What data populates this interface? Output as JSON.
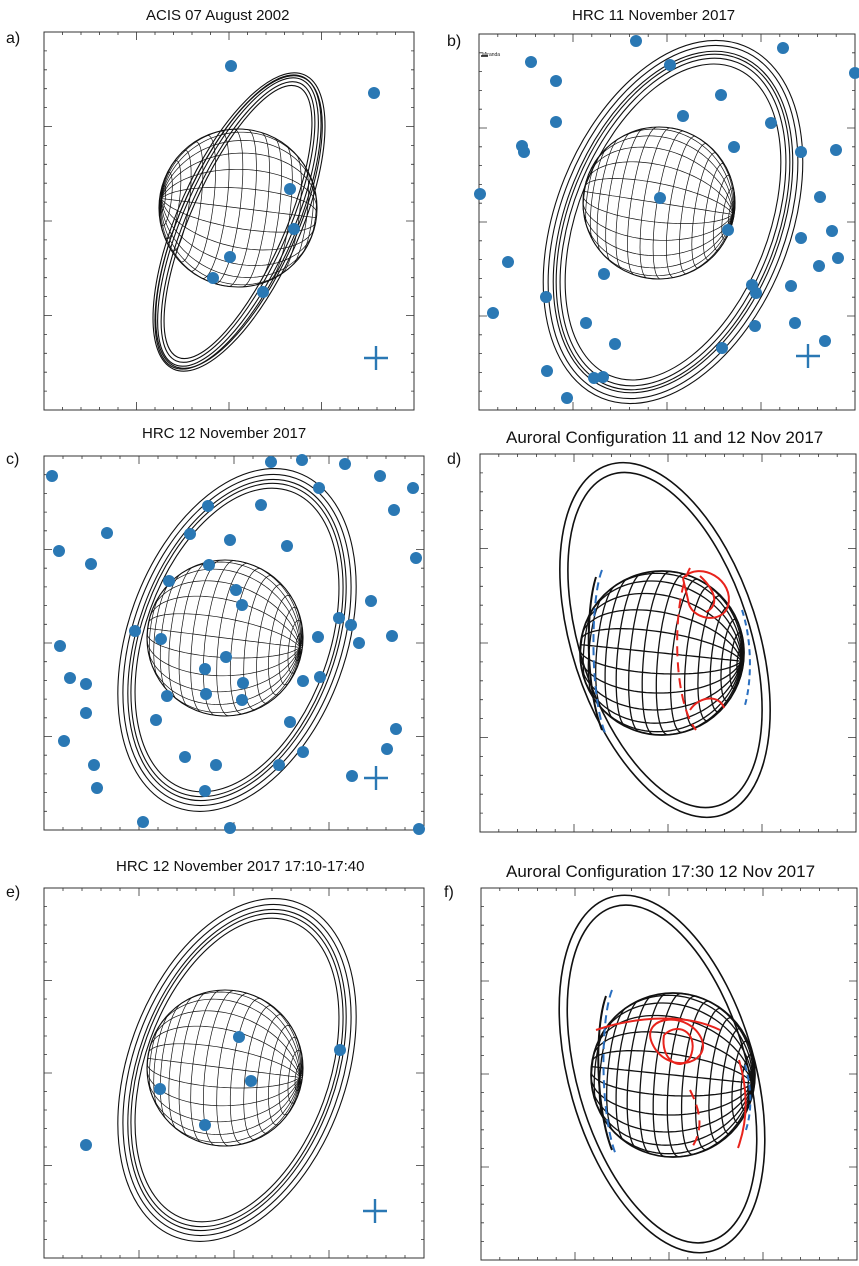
{
  "panels": [
    {
      "id": "a",
      "letter": "a)",
      "title": "ACIS 07 August 2002"
    },
    {
      "id": "b",
      "letter": "b)",
      "title": "HRC 11 November 2017",
      "moon_label": "Miranda"
    },
    {
      "id": "c",
      "letter": "c)",
      "title": "HRC 12 November 2017"
    },
    {
      "id": "d",
      "letter": "d)",
      "title": "Auroral Configuration 11 and 12 Nov 2017"
    },
    {
      "id": "e",
      "letter": "e)",
      "title": "HRC 12 November 2017 17:10-17:40"
    },
    {
      "id": "f",
      "letter": "f)",
      "title": "Auroral Configuration 17:30 12 Nov 2017"
    }
  ],
  "colors": {
    "photon": "#2a78b4",
    "grid": "#111111",
    "aurora_red": "#e8231c",
    "aurora_blue": "#2a6fc0"
  },
  "icons": {
    "photon": "filled-circle",
    "aim_point": "plus-marker"
  }
}
